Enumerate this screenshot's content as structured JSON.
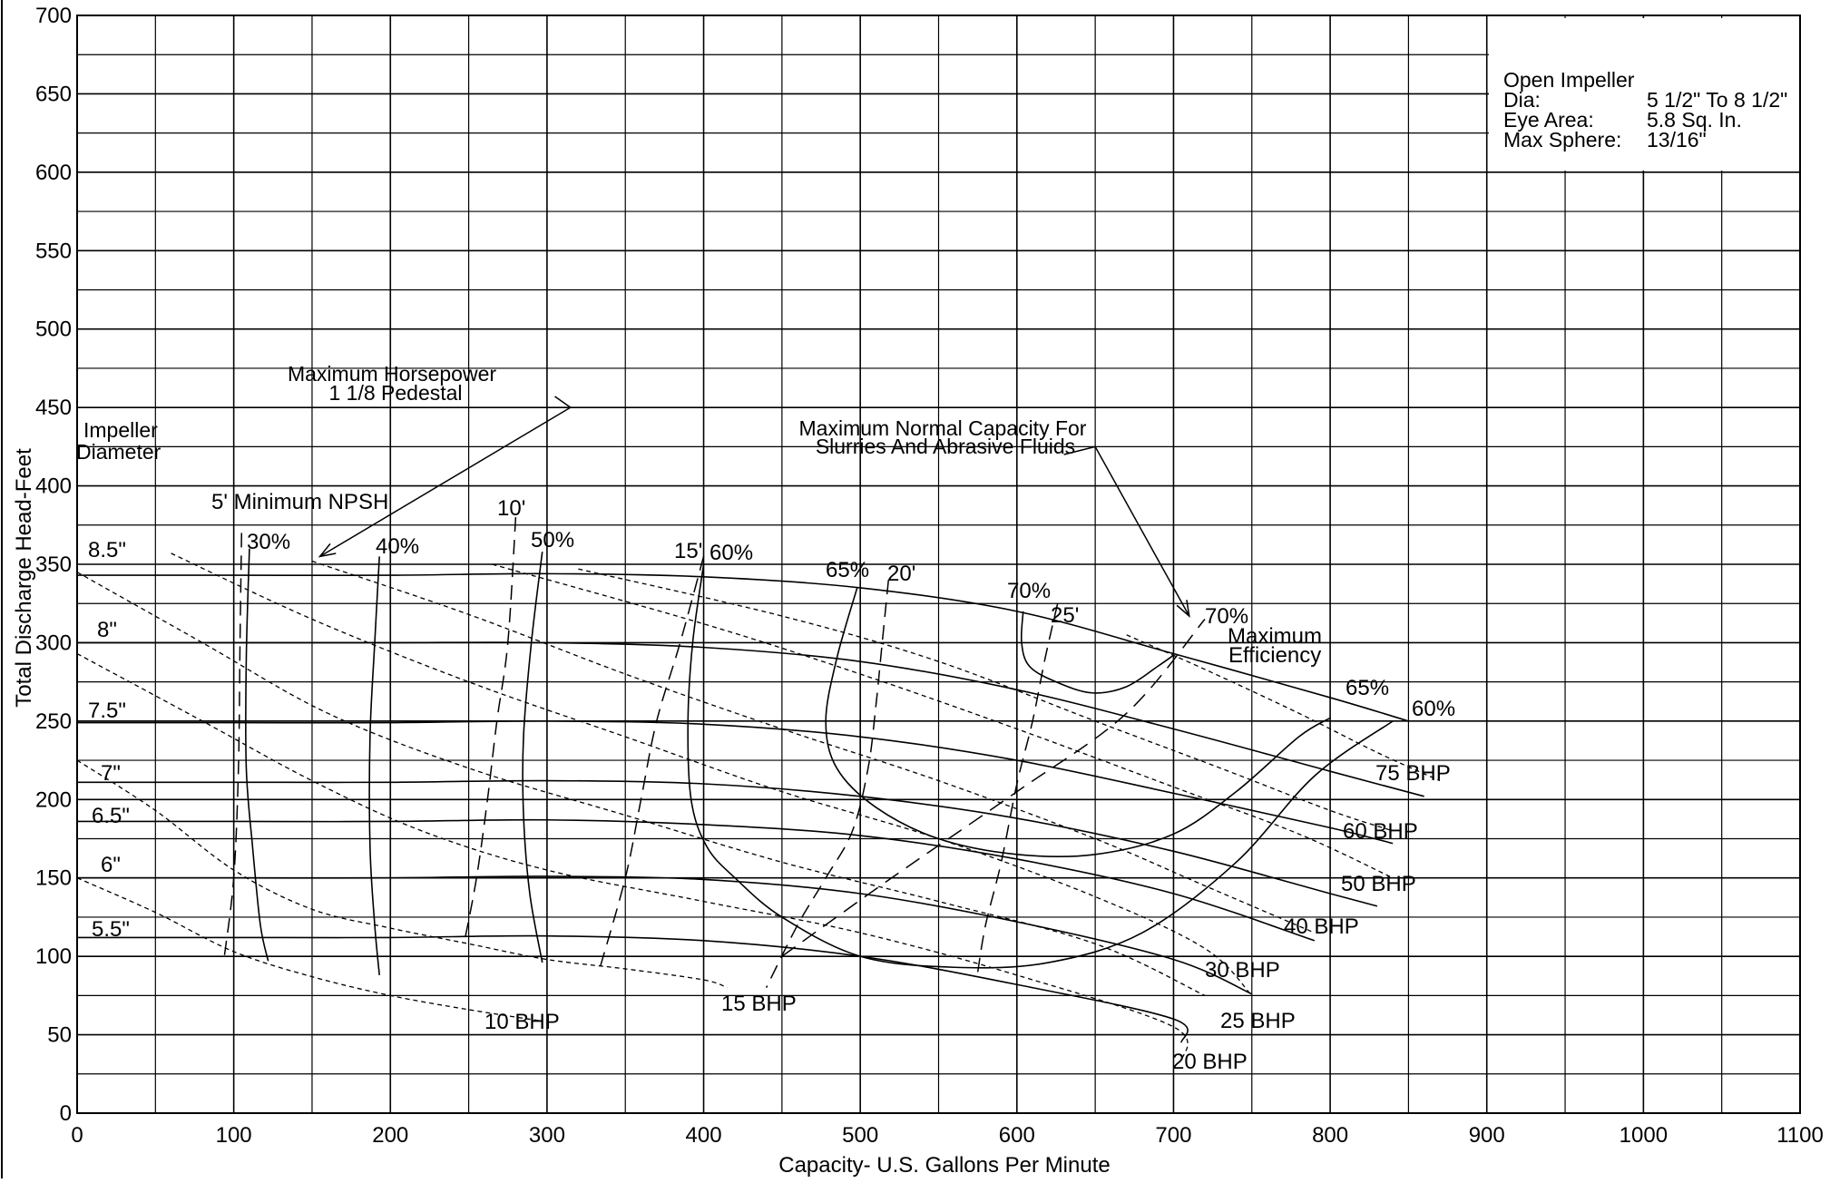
{
  "chart_data": {
    "type": "line",
    "title": "",
    "xlabel": "Capacity- U.S. Gallons Per Minute",
    "ylabel": "Total Discharge Head-Feet",
    "xlim": [
      0,
      1100
    ],
    "ylim": [
      0,
      700
    ],
    "x_ticks": [
      0,
      100,
      200,
      300,
      400,
      500,
      600,
      700,
      800,
      900,
      1000,
      1100
    ],
    "y_ticks": [
      0,
      50,
      100,
      150,
      200,
      250,
      300,
      350,
      400,
      450,
      500,
      550,
      600,
      650,
      700
    ],
    "x_tick_labels": [
      "0",
      "100",
      "200",
      "300",
      "400",
      "500",
      "600",
      "700",
      "800",
      "900",
      "1000",
      "1100"
    ],
    "y_tick_labels": [
      "0",
      "50",
      "100",
      "150",
      "200",
      "250",
      "300",
      "350",
      "400",
      "450",
      "500",
      "550",
      "600",
      "650",
      "700"
    ],
    "grid": true,
    "info_box": {
      "title": "Open Impeller",
      "rows": [
        {
          "label": "Dia:",
          "value": "5 1/2\" To 8 1/2\""
        },
        {
          "label": "Eye Area:",
          "value": "5.8 Sq. In."
        },
        {
          "label": "Max Sphere:",
          "value": "13/16\""
        }
      ]
    },
    "impeller_header": [
      "Impeller",
      "Diameter"
    ],
    "impeller_curves": [
      {
        "name": "8.5\"",
        "points": [
          [
            0,
            343
          ],
          [
            100,
            343
          ],
          [
            200,
            343
          ],
          [
            300,
            344
          ],
          [
            400,
            342
          ],
          [
            500,
            335
          ],
          [
            600,
            320
          ],
          [
            700,
            293
          ],
          [
            800,
            265
          ],
          [
            850,
            250
          ]
        ]
      },
      {
        "name": "8\"",
        "points": [
          [
            0,
            300
          ],
          [
            100,
            300
          ],
          [
            200,
            300
          ],
          [
            300,
            300
          ],
          [
            400,
            297
          ],
          [
            500,
            288
          ],
          [
            600,
            270
          ],
          [
            700,
            245
          ],
          [
            800,
            218
          ],
          [
            860,
            202
          ]
        ]
      },
      {
        "name": "7.5\"",
        "points": [
          [
            0,
            249
          ],
          [
            100,
            249
          ],
          [
            200,
            249
          ],
          [
            300,
            250
          ],
          [
            400,
            248
          ],
          [
            500,
            240
          ],
          [
            600,
            225
          ],
          [
            700,
            204
          ],
          [
            800,
            182
          ],
          [
            840,
            172
          ]
        ]
      },
      {
        "name": "7\"",
        "points": [
          [
            0,
            211
          ],
          [
            100,
            211
          ],
          [
            200,
            211
          ],
          [
            300,
            212
          ],
          [
            400,
            210
          ],
          [
            500,
            202
          ],
          [
            600,
            188
          ],
          [
            700,
            167
          ],
          [
            800,
            140
          ],
          [
            830,
            132
          ]
        ]
      },
      {
        "name": "6.5\"",
        "points": [
          [
            0,
            186
          ],
          [
            100,
            186
          ],
          [
            200,
            186
          ],
          [
            300,
            187
          ],
          [
            400,
            184
          ],
          [
            500,
            177
          ],
          [
            600,
            162
          ],
          [
            700,
            140
          ],
          [
            790,
            110
          ]
        ]
      },
      {
        "name": "6\"",
        "points": [
          [
            0,
            150
          ],
          [
            100,
            150
          ],
          [
            200,
            150
          ],
          [
            300,
            151
          ],
          [
            400,
            149
          ],
          [
            500,
            140
          ],
          [
            600,
            122
          ],
          [
            700,
            98
          ],
          [
            750,
            76
          ]
        ]
      },
      {
        "name": "5.5\"",
        "points": [
          [
            0,
            112
          ],
          [
            100,
            112
          ],
          [
            200,
            112
          ],
          [
            300,
            113
          ],
          [
            400,
            110
          ],
          [
            500,
            100
          ],
          [
            600,
            82
          ],
          [
            700,
            60
          ],
          [
            705,
            45
          ]
        ]
      }
    ],
    "efficiency_curves": [
      {
        "name": "30%",
        "points": [
          [
            110,
            360
          ],
          [
            108,
            290
          ],
          [
            108,
            220
          ],
          [
            112,
            170
          ],
          [
            117,
            120
          ],
          [
            122,
            97
          ]
        ]
      },
      {
        "name": "40%",
        "points": [
          [
            193,
            355
          ],
          [
            190,
            300
          ],
          [
            187,
            240
          ],
          [
            187,
            170
          ],
          [
            190,
            120
          ],
          [
            193,
            88
          ]
        ]
      },
      {
        "name": "50%",
        "points": [
          [
            297,
            358
          ],
          [
            290,
            300
          ],
          [
            285,
            240
          ],
          [
            285,
            190
          ],
          [
            289,
            140
          ],
          [
            297,
            96
          ]
        ]
      },
      {
        "name": "60%",
        "points": [
          [
            400,
            350
          ],
          [
            393,
            300
          ],
          [
            390,
            250
          ],
          [
            392,
            200
          ],
          [
            402,
            170
          ],
          [
            420,
            150
          ],
          [
            450,
            125
          ],
          [
            500,
            100
          ],
          [
            560,
            93
          ],
          [
            620,
            96
          ],
          [
            680,
            115
          ],
          [
            740,
            160
          ],
          [
            790,
            215
          ],
          [
            840,
            250
          ]
        ]
      },
      {
        "name": "65%",
        "points": [
          [
            498,
            335
          ],
          [
            485,
            290
          ],
          [
            478,
            250
          ],
          [
            485,
            220
          ],
          [
            510,
            195
          ],
          [
            550,
            175
          ],
          [
            600,
            165
          ],
          [
            650,
            165
          ],
          [
            700,
            178
          ],
          [
            740,
            205
          ],
          [
            780,
            240
          ],
          [
            800,
            252
          ]
        ]
      },
      {
        "name": "70%",
        "points": [
          [
            604,
            320
          ],
          [
            603,
            300
          ],
          [
            608,
            285
          ],
          [
            625,
            275
          ],
          [
            648,
            268
          ],
          [
            670,
            272
          ],
          [
            690,
            285
          ],
          [
            700,
            292
          ]
        ]
      }
    ],
    "npsh_curves": [
      {
        "name": "5' Minimum NPSH",
        "points": [
          [
            105,
            370
          ],
          [
            104,
            300
          ],
          [
            103,
            220
          ],
          [
            100,
            150
          ],
          [
            94,
            100
          ]
        ]
      },
      {
        "name": "10'",
        "points": [
          [
            280,
            380
          ],
          [
            275,
            300
          ],
          [
            268,
            250
          ],
          [
            262,
            200
          ],
          [
            255,
            150
          ],
          [
            247,
            108
          ]
        ]
      },
      {
        "name": "15'",
        "points": [
          [
            400,
            355
          ],
          [
            385,
            300
          ],
          [
            370,
            250
          ],
          [
            360,
            200
          ],
          [
            350,
            150
          ],
          [
            333,
            90
          ]
        ]
      },
      {
        "name": "20'",
        "points": [
          [
            518,
            340
          ],
          [
            514,
            300
          ],
          [
            510,
            260
          ],
          [
            505,
            220
          ],
          [
            495,
            180
          ],
          [
            478,
            150
          ],
          [
            460,
            120
          ],
          [
            440,
            80
          ]
        ]
      },
      {
        "name": "25'",
        "points": [
          [
            626,
            325
          ],
          [
            618,
            290
          ],
          [
            610,
            250
          ],
          [
            600,
            210
          ],
          [
            590,
            160
          ],
          [
            580,
            120
          ],
          [
            575,
            90
          ]
        ]
      }
    ],
    "bhp_curves": [
      {
        "name": "10 BHP",
        "points": [
          [
            0,
            150
          ],
          [
            50,
            128
          ],
          [
            100,
            103
          ],
          [
            150,
            87
          ],
          [
            200,
            75
          ],
          [
            250,
            66
          ],
          [
            295,
            59
          ]
        ]
      },
      {
        "name": "15 BHP",
        "points": [
          [
            0,
            225
          ],
          [
            50,
            193
          ],
          [
            100,
            155
          ],
          [
            150,
            130
          ],
          [
            200,
            118
          ],
          [
            250,
            108
          ],
          [
            300,
            98
          ],
          [
            350,
            92
          ],
          [
            400,
            85
          ],
          [
            415,
            80
          ]
        ]
      },
      {
        "name": "20 BHP",
        "points": [
          [
            0,
            293
          ],
          [
            80,
            250
          ],
          [
            150,
            212
          ],
          [
            220,
            180
          ],
          [
            300,
            155
          ],
          [
            400,
            135
          ],
          [
            500,
            115
          ],
          [
            600,
            88
          ],
          [
            700,
            55
          ],
          [
            705,
            33
          ]
        ]
      },
      {
        "name": "25 BHP",
        "points": [
          [
            0,
            345
          ],
          [
            80,
            300
          ],
          [
            160,
            255
          ],
          [
            250,
            220
          ],
          [
            350,
            190
          ],
          [
            450,
            160
          ],
          [
            550,
            135
          ],
          [
            650,
            108
          ],
          [
            720,
            75
          ]
        ]
      },
      {
        "name": "30 BHP",
        "points": [
          [
            60,
            357
          ],
          [
            150,
            315
          ],
          [
            250,
            275
          ],
          [
            350,
            240
          ],
          [
            450,
            205
          ],
          [
            550,
            175
          ],
          [
            650,
            138
          ],
          [
            720,
            105
          ],
          [
            750,
            75
          ]
        ]
      },
      {
        "name": "40 BHP",
        "points": [
          [
            150,
            352
          ],
          [
            250,
            318
          ],
          [
            350,
            280
          ],
          [
            450,
            245
          ],
          [
            550,
            212
          ],
          [
            650,
            175
          ],
          [
            720,
            145
          ],
          [
            790,
            115
          ]
        ]
      },
      {
        "name": "50 BHP",
        "points": [
          [
            265,
            350
          ],
          [
            400,
            312
          ],
          [
            500,
            280
          ],
          [
            600,
            245
          ],
          [
            700,
            208
          ],
          [
            780,
            178
          ],
          [
            840,
            150
          ]
        ]
      },
      {
        "name": "60 BHP",
        "points": [
          [
            320,
            347
          ],
          [
            450,
            317
          ],
          [
            550,
            288
          ],
          [
            650,
            250
          ],
          [
            730,
            220
          ],
          [
            800,
            193
          ],
          [
            840,
            180
          ]
        ]
      },
      {
        "name": "75 BHP",
        "points": [
          [
            670,
            305
          ],
          [
            720,
            283
          ],
          [
            780,
            255
          ],
          [
            830,
            230
          ],
          [
            870,
            212
          ]
        ]
      }
    ],
    "max_efficiency_line": {
      "points": [
        [
          450,
          100
        ],
        [
          520,
          150
        ],
        [
          600,
          205
        ],
        [
          670,
          255
        ],
        [
          720,
          315
        ]
      ]
    },
    "max_horsepower_arrow": {
      "points": [
        [
          315,
          450
        ],
        [
          155,
          355
        ]
      ]
    },
    "max_capacity_arrow": {
      "points": [
        [
          650,
          425
        ],
        [
          710,
          317
        ]
      ]
    },
    "annotations": {
      "impeller_1": "Impeller",
      "impeller_2": "Diameter",
      "max_hp_1": "Maximum Horsepower",
      "max_hp_2": "1 1/8 Pedestal",
      "max_cap_1": "Maximum Normal Capacity For",
      "max_cap_2": "Slurries And Abrasive Fluids",
      "npsh_5": "5' Minimum NPSH",
      "npsh_10": "10'",
      "npsh_15": "15'",
      "npsh_20": "20'",
      "npsh_25": "25'",
      "eff_30": "30%",
      "eff_40": "40%",
      "eff_50": "50%",
      "eff_60_top": "60%",
      "eff_65_top": "65%",
      "eff_70_top": "70%",
      "eff_70_right": "70%",
      "max_eff_1": "Maximum",
      "max_eff_2": "Efficiency",
      "eff_65_right": "65%",
      "eff_60_right": "60%",
      "dia_85": "8.5\"",
      "dia_8": "8\"",
      "dia_75": "7.5\"",
      "dia_7": "7\"",
      "dia_65": "6.5\"",
      "dia_6": "6\"",
      "dia_55": "5.5\"",
      "bhp_10": "10 BHP",
      "bhp_15": "15 BHP",
      "bhp_20": "20 BHP",
      "bhp_25": "25 BHP",
      "bhp_30": "30 BHP",
      "bhp_40": "40 BHP",
      "bhp_50": "50 BHP",
      "bhp_60": "60 BHP",
      "bhp_75": "75 BHP"
    }
  }
}
